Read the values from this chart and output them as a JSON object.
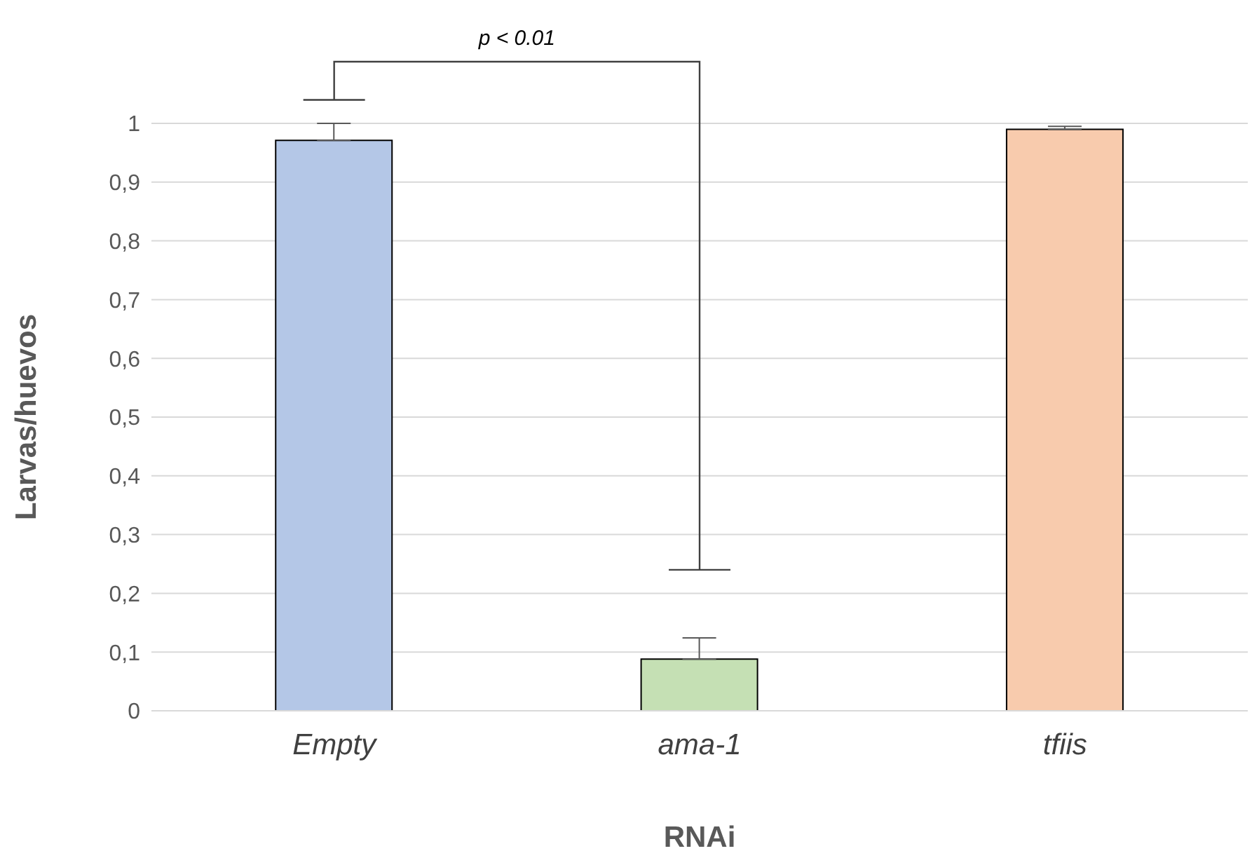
{
  "chart_data": {
    "type": "bar",
    "xlabel": "RNAi",
    "ylabel": "Larvas/huevos",
    "categories": [
      "Empty",
      "ama-1",
      "tfiis"
    ],
    "values": [
      0.971,
      0.088,
      0.99
    ],
    "colors": [
      "#b4c7e7",
      "#c5e0b4",
      "#f8cbad"
    ],
    "errors": [
      [
        0.971,
        1.0
      ],
      [
        0.088,
        0.124
      ],
      [
        0.99,
        0.995
      ]
    ],
    "ylim": [
      0,
      1
    ],
    "yticks": [
      0,
      {
        "value": 0.1,
        "label": "0,1"
      },
      {
        "value": 0.2,
        "label": "0,2"
      },
      {
        "value": 0.3,
        "label": "0,3"
      },
      {
        "value": 0.4,
        "label": "0,4"
      },
      {
        "value": 0.5,
        "label": "0,5"
      },
      {
        "value": 0.6,
        "label": "0,6"
      },
      {
        "value": 0.7,
        "label": "0,7"
      },
      {
        "value": 0.8,
        "label": "0,8"
      },
      {
        "value": 0.9,
        "label": "0,9"
      },
      1
    ],
    "annotations": [
      "p < 0.01"
    ],
    "grid": "y",
    "legend": false
  }
}
